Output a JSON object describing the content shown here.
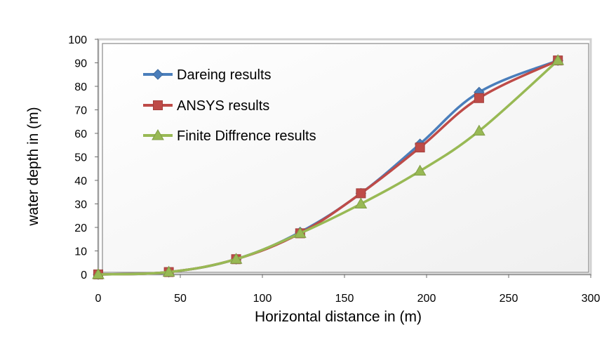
{
  "chart_data": {
    "type": "line",
    "title": "",
    "xlabel": "Horizontal distance in (m)",
    "ylabel": "water depth in (m)",
    "xlim": [
      0,
      300
    ],
    "ylim": [
      0,
      100
    ],
    "xticks": [
      0,
      50,
      100,
      150,
      200,
      250,
      300
    ],
    "yticks": [
      0,
      10,
      20,
      30,
      40,
      50,
      60,
      70,
      80,
      90,
      100
    ],
    "legend_position": "top-left",
    "series": [
      {
        "name": "Dareing results",
        "color": "#4a7ebb",
        "marker": "diamond",
        "x": [
          0,
          43,
          84,
          123,
          160,
          196,
          232,
          280
        ],
        "y": [
          0,
          1,
          6.5,
          18,
          34.5,
          55.5,
          77.5,
          91
        ]
      },
      {
        "name": "ANSYS results",
        "color": "#be4b48",
        "marker": "square",
        "x": [
          0,
          43,
          84,
          123,
          160,
          196,
          232,
          280
        ],
        "y": [
          0,
          1,
          6.5,
          17.5,
          34.5,
          54,
          75,
          91
        ]
      },
      {
        "name": "Finite Diffrence results",
        "color": "#98b954",
        "marker": "triangle",
        "x": [
          0,
          43,
          84,
          123,
          160,
          196,
          232,
          280
        ],
        "y": [
          0,
          1,
          6.5,
          17.5,
          30,
          44,
          61,
          91
        ]
      }
    ]
  }
}
